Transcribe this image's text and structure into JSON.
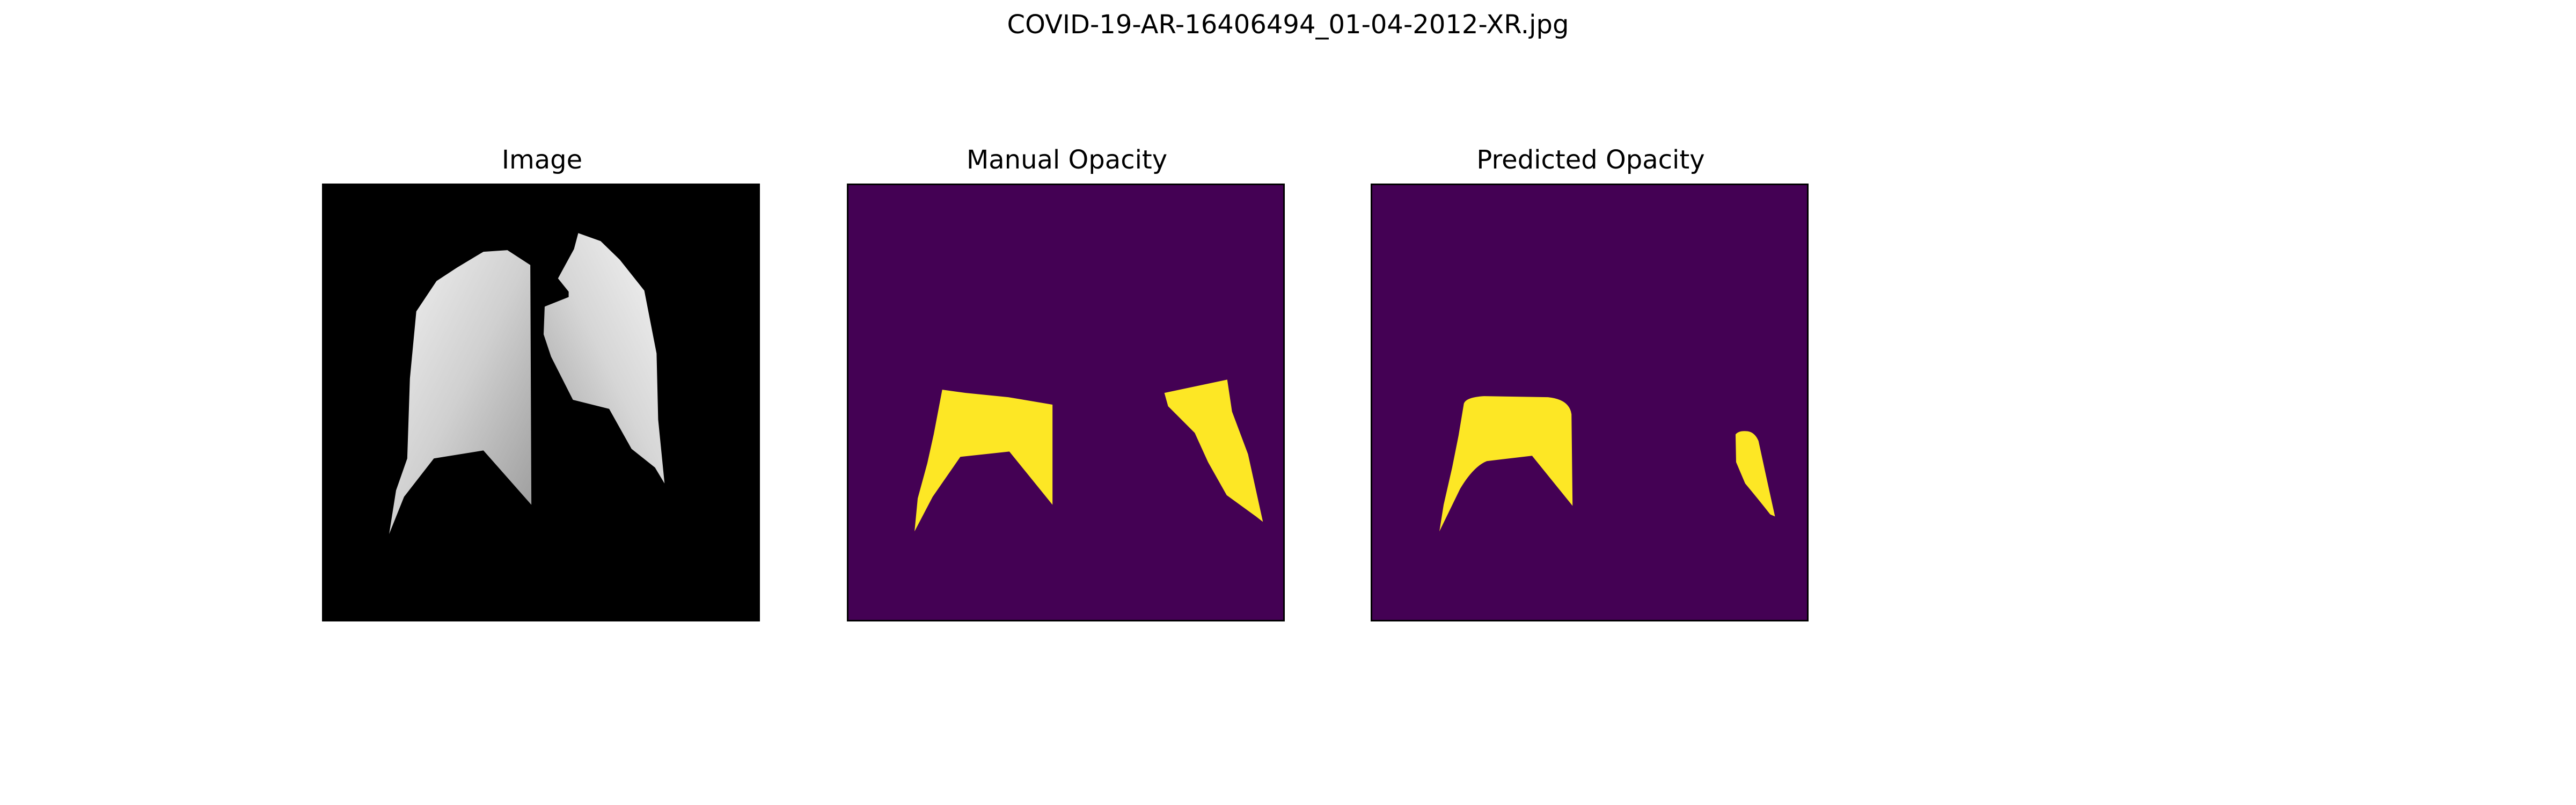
{
  "figure": {
    "title": "COVID-19-AR-16406494_01-04-2012-XR.jpg"
  },
  "panels": [
    {
      "title": "Image"
    },
    {
      "title": "Manual Opacity"
    },
    {
      "title": "Predicted Opacity"
    }
  ],
  "colors": {
    "image_background": "#000000",
    "mask_background": "#440154",
    "mask_foreground": "#fde725",
    "lung_tone": "#d9d9d9"
  }
}
